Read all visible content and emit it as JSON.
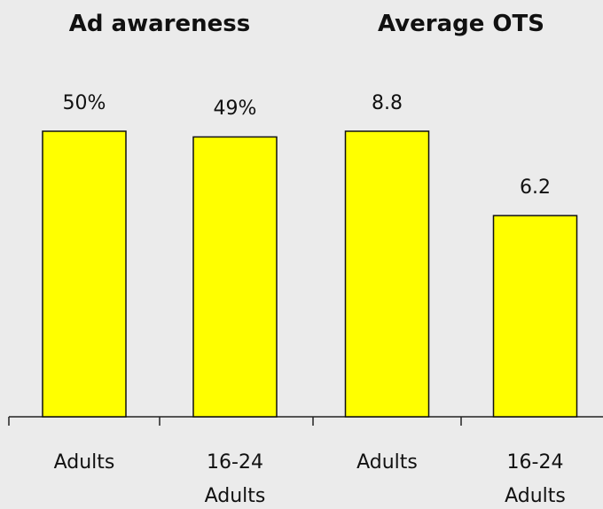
{
  "chart_data": [
    {
      "type": "bar",
      "title": "Ad awareness",
      "categories": [
        "Adults",
        "16-24 Adults"
      ],
      "values": [
        50,
        49
      ],
      "value_labels": [
        "50%",
        "49%"
      ],
      "color": "#ffff00"
    },
    {
      "type": "bar",
      "title": "Average OTS",
      "categories": [
        "Adults",
        "16-24 Adults"
      ],
      "values": [
        8.8,
        6.2
      ],
      "value_labels": [
        "8.8",
        "6.2"
      ],
      "color": "#ffff00"
    }
  ]
}
